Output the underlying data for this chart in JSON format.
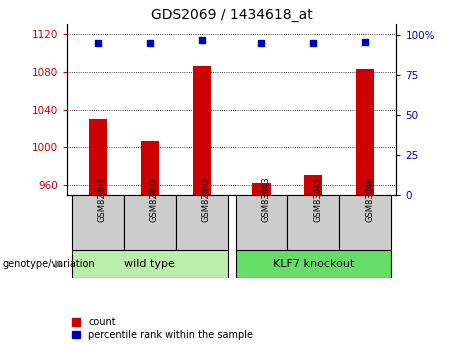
{
  "title": "GDS2069 / 1434618_at",
  "samples": [
    "GSM82891",
    "GSM82892",
    "GSM82893",
    "GSM83043",
    "GSM83045",
    "GSM83046"
  ],
  "bar_values": [
    1030,
    1007,
    1086,
    963,
    971,
    1083
  ],
  "percentile_values": [
    95,
    95,
    97,
    95,
    95,
    96
  ],
  "ylim_left": [
    950,
    1130
  ],
  "ylim_right": [
    0,
    107
  ],
  "yticks_left": [
    960,
    1000,
    1040,
    1080,
    1120
  ],
  "yticks_right": [
    0,
    25,
    50,
    75,
    100
  ],
  "bar_color": "#cc0000",
  "dot_color": "#0000bb",
  "group1_label": "wild type",
  "group2_label": "KLF7 knockout",
  "group1_indices": [
    0,
    1,
    2
  ],
  "group2_indices": [
    3,
    4,
    5
  ],
  "group_bg_color_1": "#bbeeaa",
  "group_bg_color_2": "#66dd66",
  "tick_label_bg": "#cccccc",
  "legend_count_label": "count",
  "legend_pct_label": "percentile rank within the sample",
  "xlabel_left": "genotype/variation",
  "bar_width": 0.35,
  "x_positions": [
    0,
    1,
    2,
    3.15,
    4.15,
    5.15
  ]
}
